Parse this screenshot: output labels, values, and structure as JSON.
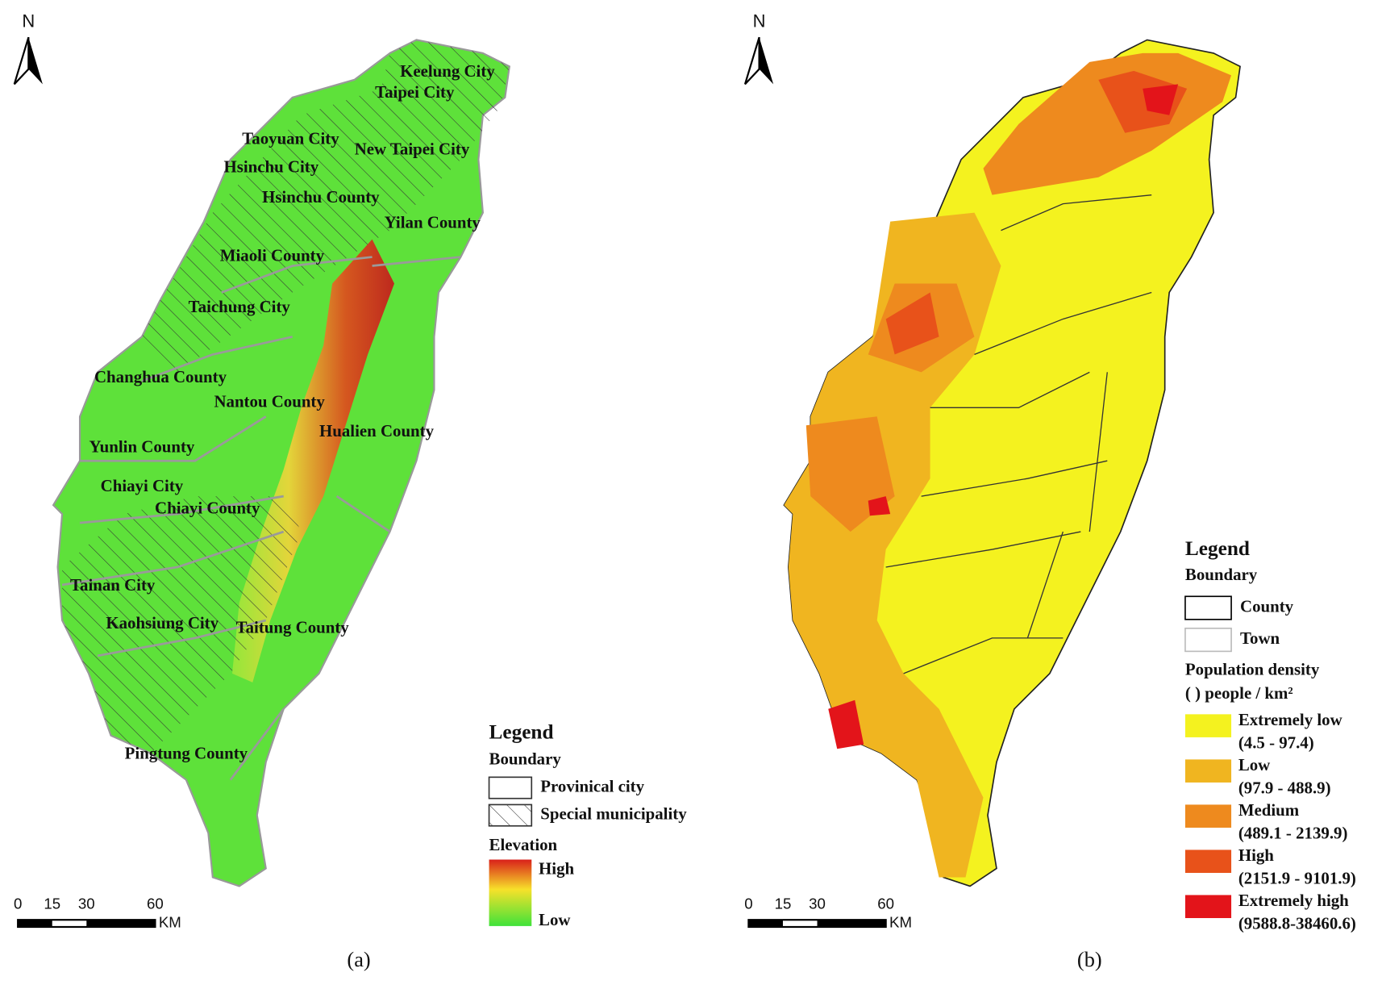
{
  "panels": [
    {
      "caption": "(a)",
      "north": "N",
      "scale_bar": {
        "ticks": [
          0,
          15,
          30,
          60
        ],
        "unit": "KM"
      },
      "place_labels": [
        "Keelung City",
        "Taipei City",
        "Taoyuan City",
        "New Taipei City",
        "Hsinchu City",
        "Hsinchu County",
        "Yilan County",
        "Miaoli County",
        "Taichung City",
        "Changhua County",
        "Nantou County",
        "Hualien County",
        "Yunlin County",
        "Chiayi City",
        "Chiayi County",
        "Tainan City",
        "Kaohsiung City",
        "Taitung County",
        "Pingtung County"
      ],
      "legend": {
        "title": "Legend",
        "boundary_title": "Boundary",
        "boundary_items": [
          "Provinical city",
          "Special municipality"
        ],
        "elevation_title": "Elevation",
        "elevation_high": "High",
        "elevation_low": "Low"
      }
    },
    {
      "caption": "(b)",
      "north": "N",
      "scale_bar": {
        "ticks": [
          0,
          15,
          30,
          60
        ],
        "unit": "KM"
      },
      "legend": {
        "title": "Legend",
        "boundary_title": "Boundary",
        "boundary_items": [
          "County",
          "Town"
        ],
        "density_title": "Population density",
        "density_unit": "(      ) people / km²",
        "classes": [
          {
            "name": "Extremely low",
            "range": "(4.5 - 97.4)",
            "color": "#f4f21f"
          },
          {
            "name": "Low",
            "range": "(97.9 - 488.9)",
            "color": "#f0b520"
          },
          {
            "name": "Medium",
            "range": "(489.1 - 2139.9)",
            "color": "#ee8a1e"
          },
          {
            "name": "High",
            "range": "(2151.9 - 9101.9)",
            "color": "#e8521a"
          },
          {
            "name": "Extremely high",
            "range": "(9588.8-38460.6)",
            "color": "#e3141a"
          }
        ]
      }
    }
  ]
}
